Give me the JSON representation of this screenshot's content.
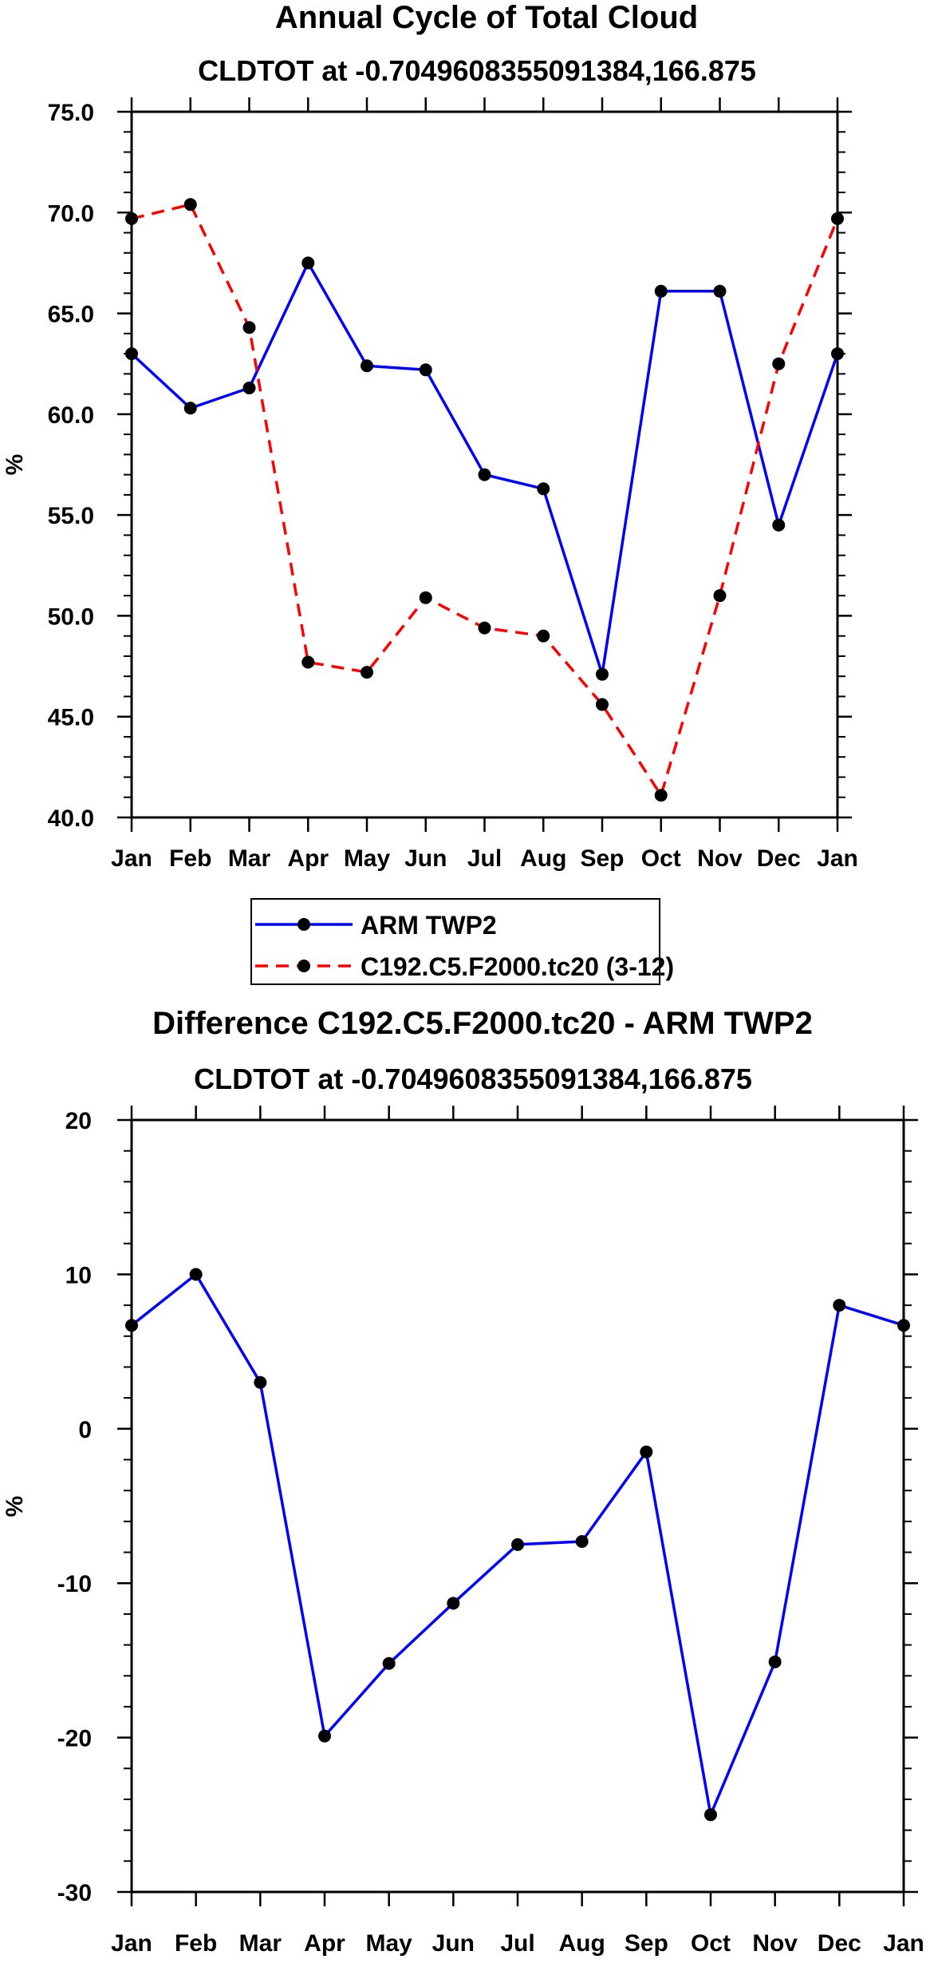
{
  "colors": {
    "arm": "#0000ff",
    "model": "#ff0000",
    "marker": "#000000",
    "axis": "#000000"
  },
  "legend": {
    "arm_label": "ARM TWP2",
    "model_label": "C192.C5.F2000.tc20 (3-12)"
  },
  "chart_data": [
    {
      "type": "line",
      "title": "Annual Cycle of Total Cloud",
      "subtitle": "CLDTOT at -0.7049608355091384,166.875",
      "xlabel": "",
      "ylabel": "%",
      "categories": [
        "Jan",
        "Feb",
        "Mar",
        "Apr",
        "May",
        "Jun",
        "Jul",
        "Aug",
        "Sep",
        "Oct",
        "Nov",
        "Dec",
        "Jan"
      ],
      "ylim": [
        40,
        75
      ],
      "yticks": [
        40,
        45,
        50,
        55,
        60,
        65,
        70,
        75
      ],
      "ytick_labels": [
        "40.0",
        "45.0",
        "50.0",
        "55.0",
        "60.0",
        "65.0",
        "70.0",
        "75.0"
      ],
      "yminor_step": 1,
      "grid": false,
      "series": [
        {
          "name": "ARM TWP2",
          "style": "solid",
          "values": [
            63.0,
            60.3,
            61.3,
            67.5,
            62.4,
            62.2,
            57.0,
            56.3,
            47.1,
            66.1,
            66.1,
            54.5,
            63.0
          ]
        },
        {
          "name": "C192.C5.F2000.tc20 (3-12)",
          "style": "dashed",
          "values": [
            69.7,
            70.4,
            64.3,
            47.7,
            47.2,
            50.9,
            49.4,
            49.0,
            45.6,
            41.1,
            51.0,
            62.5,
            69.7
          ]
        }
      ]
    },
    {
      "type": "line",
      "title": "Difference C192.C5.F2000.tc20 - ARM TWP2",
      "subtitle": "CLDTOT at -0.7049608355091384,166.875",
      "xlabel": "",
      "ylabel": "%",
      "categories": [
        "Jan",
        "Feb",
        "Mar",
        "Apr",
        "May",
        "Jun",
        "Jul",
        "Aug",
        "Sep",
        "Oct",
        "Nov",
        "Dec",
        "Jan"
      ],
      "ylim": [
        -30,
        20
      ],
      "yticks": [
        -30,
        -20,
        -10,
        0,
        10,
        20
      ],
      "ytick_labels": [
        "-30",
        "-20",
        "-10",
        "0",
        "10",
        "20"
      ],
      "yminor_step": 2,
      "grid": false,
      "series": [
        {
          "name": "difference",
          "style": "solid",
          "values": [
            6.7,
            10.0,
            3.0,
            -19.9,
            -15.2,
            -11.3,
            -7.5,
            -7.3,
            -1.5,
            -25.0,
            -15.1,
            8.0,
            6.7
          ]
        }
      ]
    }
  ]
}
